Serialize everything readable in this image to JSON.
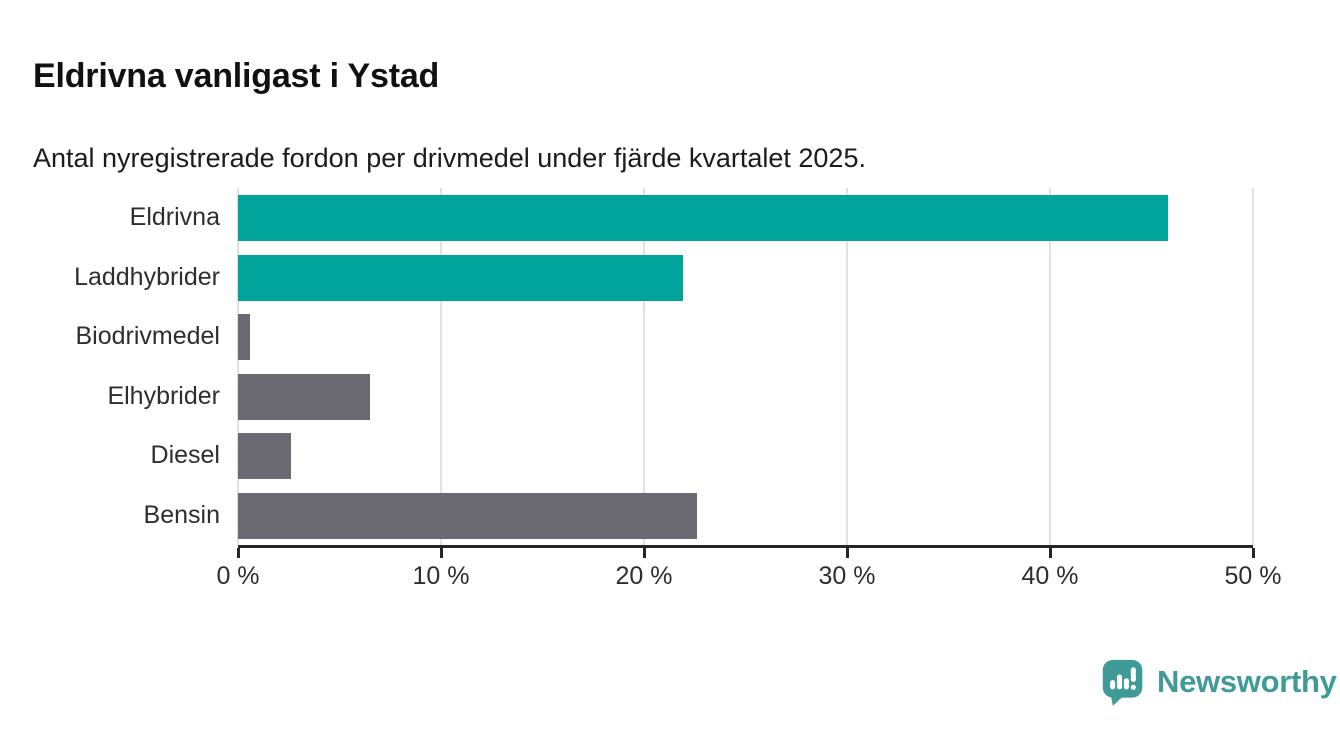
{
  "header": {
    "title": "Eldrivna vanligast i Ystad",
    "subtitle": "Antal nyregistrerade fordon per drivmedel under fjärde kvartalet 2025."
  },
  "chart_data": {
    "type": "bar",
    "orientation": "horizontal",
    "title": "Eldrivna vanligast i Ystad",
    "subtitle": "Antal nyregistrerade fordon per drivmedel under fjärde kvartalet 2025.",
    "categories": [
      "Eldrivna",
      "Laddhybrider",
      "Biodrivmedel",
      "Elhybrider",
      "Diesel",
      "Bensin"
    ],
    "values": [
      45.8,
      21.9,
      0.6,
      6.5,
      2.6,
      22.6
    ],
    "unit": "%",
    "bar_colors": [
      "#00a49b",
      "#00a49b",
      "#6b6a72",
      "#6b6a72",
      "#6b6a72",
      "#6b6a72"
    ],
    "x_ticks": [
      "0 %",
      "10 %",
      "20 %",
      "30 %",
      "40 %",
      "50 %"
    ],
    "x_tick_values": [
      0,
      10,
      20,
      30,
      40,
      50
    ],
    "xlim": [
      0,
      50
    ],
    "grid": true,
    "legend": "none",
    "xlabel": "",
    "ylabel": ""
  },
  "footer": {
    "brand": "Newsworthy",
    "logo_icon": "newsworthy-speech-bubble-chart-icon"
  },
  "colors": {
    "accent_teal": "#00a49b",
    "neutral_gray": "#6b6a72",
    "brand_teal": "#3f9b98",
    "grid_line": "#e1e1e1",
    "axis_line": "#262626",
    "text_dark": "#111111",
    "text_label": "#2e2e2e"
  }
}
